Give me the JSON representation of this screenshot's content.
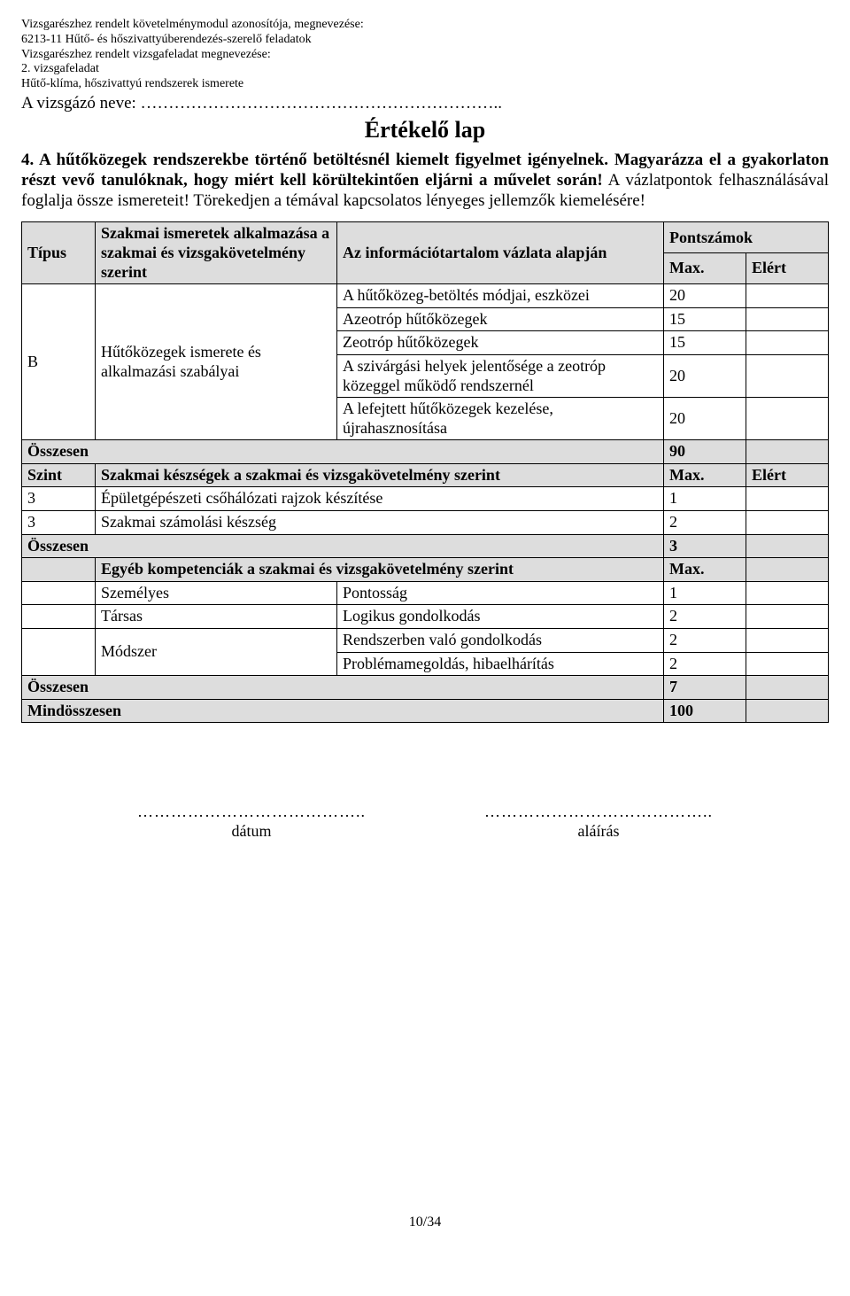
{
  "header": {
    "l1": "Vizsgarészhez rendelt követelménymodul azonosítója, megnevezése:",
    "l2": "6213-11 Hűtő- és hőszivattyúberendezés-szerelő feladatok",
    "l3": "Vizsgarészhez rendelt vizsgafeladat megnevezése:",
    "l4": "2. vizsgafeladat",
    "l5": "Hűtő-klíma, hőszivattyú rendszerek ismerete",
    "cand_label": "A vizsgázó neve:",
    "cand_dots": "………………………………………………………..",
    "title": "Értékelő lap"
  },
  "intro": {
    "p1a": "4. A hűtőközegek rendszerekbe történő betöltésnél kiemelt figyelmet igényelnek. Magyarázza el a gyakorlaton részt vevő tanulóknak, hogy miért kell körültekintően eljárni a művelet során!",
    "p1b": " A vázlatpontok felhasználásával foglalja össze ismereteit! Törekedjen a témával kapcsolatos lényeges jellemzők kiemelésére!"
  },
  "table": {
    "h_tipus": "Típus",
    "h_szakmai": "Szakmai ismeretek alkalmazása a szakmai és vizsgakövetelmény szerint",
    "h_info": "Az információtartalom vázlata alapján",
    "h_pont": "Pontszámok",
    "h_max": "Max.",
    "h_elert": "Elért",
    "b_tipus": "B",
    "b_szakmai": "Hűtőközegek ismerete és alkalmazási szabályai",
    "r": [
      {
        "t": "A hűtőközeg-betöltés módjai, eszközei",
        "m": "20"
      },
      {
        "t": "Azeotróp hűtőközegek",
        "m": "15"
      },
      {
        "t": "Zeotróp hűtőközegek",
        "m": "15"
      },
      {
        "t": "A szivárgási helyek jelentősége a zeotróp közeggel működő rendszernél",
        "m": "20"
      },
      {
        "t": "A lefejtett hűtőközegek kezelése, újrahasznosítása",
        "m": "20"
      }
    ],
    "ossz1_l": "Összesen",
    "ossz1_v": "90",
    "szint_l": "Szint",
    "keszseg_l": "Szakmai készségek a szakmai és vizsgakövetelmény szerint",
    "k": [
      {
        "s": "3",
        "t": "Épületgépészeti csőhálózati rajzok készítése",
        "m": "1"
      },
      {
        "s": "3",
        "t": "Szakmai számolási készség",
        "m": "2"
      }
    ],
    "ossz2_l": "Összesen",
    "ossz2_v": "3",
    "egyeb_l": "Egyéb kompetenciák a szakmai és vizsgakövetelmény szerint",
    "e": [
      {
        "c": "Személyes",
        "t": "Pontosság",
        "m": "1"
      },
      {
        "c": "Társas",
        "t": "Logikus gondolkodás",
        "m": "2"
      }
    ],
    "modszer_l": "Módszer",
    "mr": [
      {
        "t": "Rendszerben való gondolkodás",
        "m": "2"
      },
      {
        "t": "Problémamegoldás, hibaelhárítás",
        "m": "2"
      }
    ],
    "ossz3_l": "Összesen",
    "ossz3_v": "7",
    "mind_l": "Mindösszesen",
    "mind_v": "100"
  },
  "sign": {
    "dots": "…………………………………..",
    "datum": "dátum",
    "alairas": "aláírás"
  },
  "pagenum": "10/34"
}
